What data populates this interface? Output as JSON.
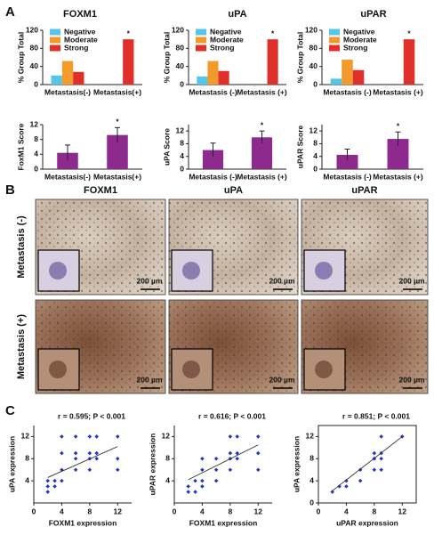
{
  "panels": [
    "A",
    "B",
    "C"
  ],
  "chart_data": [
    {
      "type": "bar",
      "title": "FOXM1",
      "y_label": "% Group Total",
      "categories": [
        "Metastasis(-)",
        "Metastasis(+)"
      ],
      "series": [
        {
          "name": "Negative",
          "color": "#56c6e6",
          "values": [
            20,
            0
          ]
        },
        {
          "name": "Moderate",
          "color": "#f39a2c",
          "values": [
            52,
            0
          ]
        },
        {
          "name": "Strong",
          "color": "#e0302a",
          "values": [
            28,
            100
          ]
        }
      ],
      "ylim": [
        0,
        120
      ],
      "yticks": [
        0,
        40,
        80,
        120
      ],
      "legend": "upper-left",
      "annotation": "*"
    },
    {
      "type": "bar",
      "title": "uPA",
      "y_label": "% Group Total",
      "categories": [
        "Metastasis (-)",
        "Metastasis (+)"
      ],
      "series": [
        {
          "name": "Negative",
          "color": "#56c6e6",
          "values": [
            18,
            0
          ]
        },
        {
          "name": "Moderate",
          "color": "#f39a2c",
          "values": [
            52,
            0
          ]
        },
        {
          "name": "Strong",
          "color": "#e0302a",
          "values": [
            30,
            100
          ]
        }
      ],
      "ylim": [
        0,
        120
      ],
      "yticks": [
        0,
        40,
        80,
        120
      ],
      "legend": "upper-left",
      "annotation": "*"
    },
    {
      "type": "bar",
      "title": "uPAR",
      "y_label": "% Group Total",
      "categories": [
        "Metastasis (-)",
        "Metastasis (+)"
      ],
      "series": [
        {
          "name": "Negative",
          "color": "#56c6e6",
          "values": [
            13,
            0
          ]
        },
        {
          "name": "Moderate",
          "color": "#f39a2c",
          "values": [
            55,
            0
          ]
        },
        {
          "name": "Strong",
          "color": "#e0302a",
          "values": [
            32,
            100
          ]
        }
      ],
      "ylim": [
        0,
        120
      ],
      "yticks": [
        0,
        40,
        80,
        120
      ],
      "legend": "upper-left",
      "annotation": "*"
    },
    {
      "type": "bar",
      "y_label": "FoxM1 Score",
      "categories": [
        "Metastasis(-)",
        "Metastasis(+)"
      ],
      "values": [
        4.4,
        9.2
      ],
      "errors": [
        2.1,
        2.0
      ],
      "color": "#8e2a8e",
      "ylim": [
        0,
        12
      ],
      "yticks": [
        0,
        4,
        8,
        12
      ],
      "annotation": "*"
    },
    {
      "type": "bar",
      "y_label": "uPA Score",
      "categories": [
        "Metastasis (-)",
        "Metastasis (+)"
      ],
      "values": [
        6.0,
        10.0
      ],
      "errors": [
        2.2,
        2.0
      ],
      "color": "#8e2a8e",
      "ylim": [
        0,
        14
      ],
      "yticks": [
        0,
        4,
        8,
        12
      ],
      "annotation": "*"
    },
    {
      "type": "bar",
      "y_label": "uPAR Score",
      "categories": [
        "Metastasis (-)",
        "Metastasis (+)"
      ],
      "values": [
        4.5,
        9.5
      ],
      "errors": [
        1.8,
        2.2
      ],
      "color": "#8e2a8e",
      "ylim": [
        0,
        14
      ],
      "yticks": [
        0,
        4,
        8,
        12
      ],
      "annotation": "*"
    },
    {
      "type": "scatter",
      "annotation": "r = 0.595;  P < 0.001",
      "x_label": "FOXM1 expression",
      "y_label": "uPA expression",
      "color": "#2233cc",
      "x": [
        2,
        2,
        3,
        3,
        4,
        4,
        4,
        6,
        6,
        6,
        6,
        8,
        8,
        8,
        8,
        9,
        9,
        9,
        12,
        12,
        12,
        4,
        2
      ],
      "y": [
        2,
        3,
        4,
        3,
        4,
        6,
        12,
        6,
        8,
        9,
        12,
        6,
        8,
        9,
        12,
        8,
        9,
        12,
        6,
        8,
        12,
        9,
        4
      ],
      "fit": {
        "x": [
          2,
          12
        ],
        "y": [
          4.6,
          10.2
        ]
      },
      "xlim": [
        0,
        14
      ],
      "ylim": [
        0,
        14
      ],
      "xticks": [
        0,
        4,
        8,
        12
      ],
      "yticks": [
        4,
        8,
        12
      ]
    },
    {
      "type": "scatter",
      "annotation": "r = 0.616;  P < 0.001",
      "x_label": "FOXM1 expression",
      "y_label": "uPAR expression",
      "color": "#2233cc",
      "x": [
        2,
        2,
        3,
        3,
        4,
        4,
        4,
        6,
        6,
        6,
        8,
        8,
        8,
        8,
        9,
        9,
        9,
        12,
        12,
        12,
        4
      ],
      "y": [
        2,
        3,
        2,
        4,
        4,
        6,
        3,
        4,
        6,
        8,
        6,
        8,
        9,
        12,
        8,
        9,
        12,
        6,
        9,
        12,
        8
      ],
      "fit": {
        "x": [
          2,
          12
        ],
        "y": [
          4.2,
          10.5
        ]
      },
      "xlim": [
        0,
        14
      ],
      "ylim": [
        0,
        14
      ],
      "xticks": [
        0,
        4,
        8,
        12
      ],
      "yticks": [
        4,
        8,
        12
      ]
    },
    {
      "type": "scatter",
      "annotation": "r = 0.851;  P < 0.001",
      "x_label": "uPAR expression",
      "y_label": "uPA expression",
      "color": "#2233cc",
      "x": [
        2,
        3,
        4,
        4,
        6,
        6,
        8,
        8,
        8,
        9,
        9,
        9,
        12,
        8,
        9
      ],
      "y": [
        2,
        3,
        3,
        4,
        6,
        4,
        8,
        6,
        8,
        8,
        9,
        6,
        12,
        9,
        12
      ],
      "fit": {
        "x": [
          2,
          12
        ],
        "y": [
          2.2,
          12
        ]
      },
      "xlim": [
        0,
        14
      ],
      "ylim": [
        0,
        14
      ],
      "xticks": [
        0,
        4,
        8,
        12
      ],
      "yticks": [
        0,
        4,
        8,
        12
      ]
    }
  ],
  "images": {
    "columns": [
      "FOXM1",
      "uPA",
      "uPAR"
    ],
    "rows": [
      "Metastasis (-)",
      "Metastasis (+)"
    ],
    "scale_label": "200 µm"
  }
}
